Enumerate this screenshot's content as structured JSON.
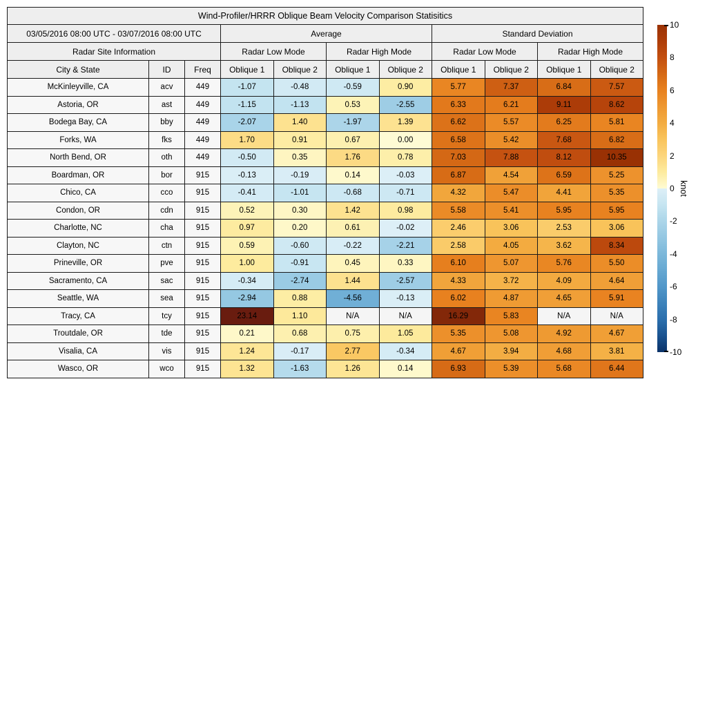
{
  "chart_data": {
    "type": "heatmap",
    "title": "Wind-Profiler/HRRR Oblique Beam Velocity Comparison Statisitics",
    "period": "03/05/2016 08:00 UTC - 03/07/2016 08:00 UTC",
    "site_info_header": "Radar Site Information",
    "group_headers": [
      "Average",
      "Standard Deviation"
    ],
    "subgroup_headers": [
      "Radar Low Mode",
      "Radar High Mode",
      "Radar Low Mode",
      "Radar High Mode"
    ],
    "columns": [
      "City & State",
      "ID",
      "Freq",
      "Oblique 1",
      "Oblique 2",
      "Oblique 1",
      "Oblique 2",
      "Oblique 1",
      "Oblique 2",
      "Oblique 1",
      "Oblique 2"
    ],
    "na_text": "N/A",
    "rows": [
      {
        "city": "McKinleyville, CA",
        "id": "acv",
        "freq": "449",
        "values": [
          -1.07,
          -0.48,
          -0.59,
          0.9,
          5.77,
          7.37,
          6.84,
          7.57
        ]
      },
      {
        "city": "Astoria, OR",
        "id": "ast",
        "freq": "449",
        "values": [
          -1.15,
          -1.13,
          0.53,
          -2.55,
          6.33,
          6.21,
          9.11,
          8.62
        ]
      },
      {
        "city": "Bodega Bay, CA",
        "id": "bby",
        "freq": "449",
        "values": [
          -2.07,
          1.4,
          -1.97,
          1.39,
          6.62,
          5.57,
          6.25,
          5.81
        ]
      },
      {
        "city": "Forks, WA",
        "id": "fks",
        "freq": "449",
        "values": [
          1.7,
          0.91,
          0.67,
          0.0,
          6.58,
          5.42,
          7.68,
          6.82
        ]
      },
      {
        "city": "North Bend, OR",
        "id": "oth",
        "freq": "449",
        "values": [
          -0.5,
          0.35,
          1.76,
          0.78,
          7.03,
          7.88,
          8.12,
          10.35
        ]
      },
      {
        "city": "Boardman, OR",
        "id": "bor",
        "freq": "915",
        "values": [
          -0.13,
          -0.19,
          0.14,
          -0.03,
          6.87,
          4.54,
          6.59,
          5.25
        ]
      },
      {
        "city": "Chico, CA",
        "id": "cco",
        "freq": "915",
        "values": [
          -0.41,
          -1.01,
          -0.68,
          -0.71,
          4.32,
          5.47,
          4.41,
          5.35
        ]
      },
      {
        "city": "Condon, OR",
        "id": "cdn",
        "freq": "915",
        "values": [
          0.52,
          0.3,
          1.42,
          0.98,
          5.58,
          5.41,
          5.95,
          5.95
        ]
      },
      {
        "city": "Charlotte, NC",
        "id": "cha",
        "freq": "915",
        "values": [
          0.97,
          0.2,
          0.61,
          -0.02,
          2.46,
          3.06,
          2.53,
          3.06
        ]
      },
      {
        "city": "Clayton, NC",
        "id": "ctn",
        "freq": "915",
        "values": [
          0.59,
          -0.6,
          -0.22,
          -2.21,
          2.58,
          4.05,
          3.62,
          8.34
        ]
      },
      {
        "city": "Prineville, OR",
        "id": "pve",
        "freq": "915",
        "values": [
          1.0,
          -0.91,
          0.45,
          0.33,
          6.1,
          5.07,
          5.76,
          5.5
        ]
      },
      {
        "city": "Sacramento, CA",
        "id": "sac",
        "freq": "915",
        "values": [
          -0.34,
          -2.74,
          1.44,
          -2.57,
          4.33,
          3.72,
          4.09,
          4.64
        ]
      },
      {
        "city": "Seattle, WA",
        "id": "sea",
        "freq": "915",
        "values": [
          -2.94,
          0.88,
          -4.56,
          -0.13,
          6.02,
          4.87,
          4.65,
          5.91
        ]
      },
      {
        "city": "Tracy, CA",
        "id": "tcy",
        "freq": "915",
        "values": [
          23.14,
          1.1,
          null,
          null,
          16.29,
          5.83,
          null,
          null
        ]
      },
      {
        "city": "Troutdale, OR",
        "id": "tde",
        "freq": "915",
        "values": [
          0.21,
          0.68,
          0.75,
          1.05,
          5.35,
          5.08,
          4.92,
          4.67
        ]
      },
      {
        "city": "Visalia, CA",
        "id": "vis",
        "freq": "915",
        "values": [
          1.24,
          -0.17,
          2.77,
          -0.34,
          4.67,
          3.94,
          4.68,
          3.81
        ]
      },
      {
        "city": "Wasco, OR",
        "id": "wco",
        "freq": "915",
        "values": [
          1.32,
          -1.63,
          1.26,
          0.14,
          6.93,
          5.39,
          5.68,
          6.44
        ]
      }
    ],
    "colorbar": {
      "label": "knot",
      "min": -10,
      "max": 10,
      "ticks": [
        10,
        8,
        6,
        4,
        2,
        0,
        -2,
        -4,
        -6,
        -8,
        -10
      ]
    }
  },
  "colors": {
    "na_bg": "#f5f5f5",
    "header_bg": "#eeeeee",
    "label_bg": "#f7f7f7",
    "scale": [
      {
        "v": -10,
        "c": "#0a3268"
      },
      {
        "v": -9,
        "c": "#1a5390"
      },
      {
        "v": -8,
        "c": "#2b6fad"
      },
      {
        "v": -7,
        "c": "#3d83bb"
      },
      {
        "v": -6,
        "c": "#5197c9"
      },
      {
        "v": -5,
        "c": "#66a8d2"
      },
      {
        "v": -4,
        "c": "#7cb8da"
      },
      {
        "v": -3,
        "c": "#94c7e2"
      },
      {
        "v": -2,
        "c": "#abd5e9"
      },
      {
        "v": -1,
        "c": "#c6e5f1"
      },
      {
        "v": -0.002,
        "c": "#ddeff7"
      },
      {
        "v": 0,
        "c": "#fefbd4"
      },
      {
        "v": 1,
        "c": "#fdeb9e"
      },
      {
        "v": 2,
        "c": "#fcd57c"
      },
      {
        "v": 3,
        "c": "#f9c45c"
      },
      {
        "v": 4,
        "c": "#f3ac41"
      },
      {
        "v": 5,
        "c": "#ee9831"
      },
      {
        "v": 6,
        "c": "#e8811f"
      },
      {
        "v": 7,
        "c": "#d56915"
      },
      {
        "v": 8,
        "c": "#c34f10"
      },
      {
        "v": 9,
        "c": "#ae3d08"
      },
      {
        "v": 10,
        "c": "#9a3204"
      },
      {
        "v": 24,
        "c": "#661b10"
      }
    ]
  }
}
